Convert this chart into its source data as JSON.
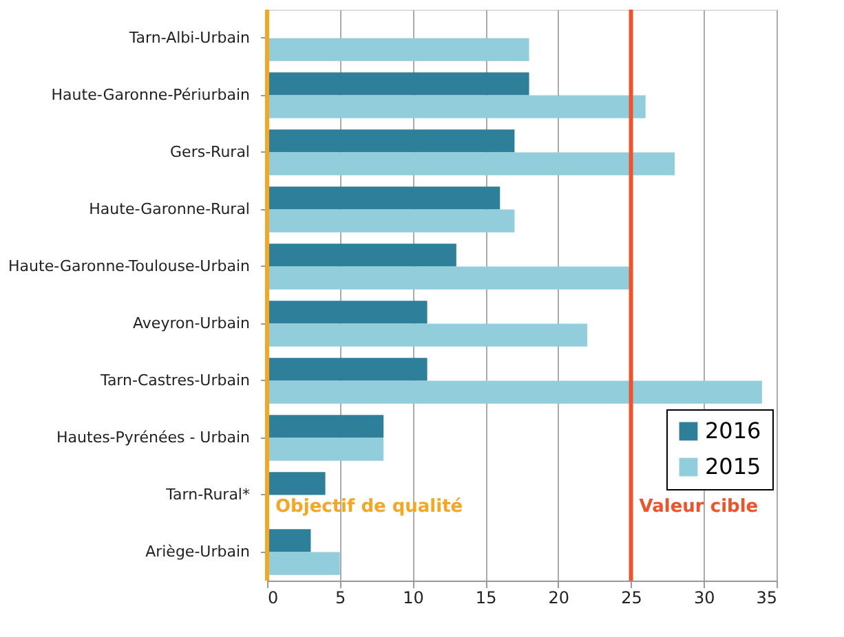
{
  "chart_data": {
    "type": "bar",
    "orientation": "horizontal",
    "categories": [
      "Tarn-Albi-Urbain",
      "Haute-Garonne-Périurbain",
      "Gers-Rural",
      "Haute-Garonne-Rural",
      "Haute-Garonne-Toulouse-Urbain",
      "Aveyron-Urbain",
      "Tarn-Castres-Urbain",
      "Hautes-Pyrénées - Urbain",
      "Tarn-Rural*",
      "Ariège-Urbain"
    ],
    "series": [
      {
        "name": "2016",
        "color": "#2e7f99",
        "values": [
          null,
          18,
          17,
          16,
          13,
          11,
          11,
          8,
          4,
          3
        ]
      },
      {
        "name": "2015",
        "color": "#92cddc",
        "values": [
          18,
          26,
          28,
          17,
          25,
          22,
          34,
          8,
          null,
          5
        ]
      }
    ],
    "xlim": [
      0,
      35
    ],
    "xticks": [
      0,
      5,
      10,
      15,
      20,
      25,
      30,
      35
    ],
    "grid": "x",
    "legend": "right",
    "ref_lines": [
      {
        "axis": "x",
        "value": 0,
        "label": "Objectif de qualité",
        "color": "#f5a623"
      },
      {
        "axis": "x",
        "value": 25,
        "label": "Valeur cible",
        "color": "#f0532a"
      }
    ]
  }
}
